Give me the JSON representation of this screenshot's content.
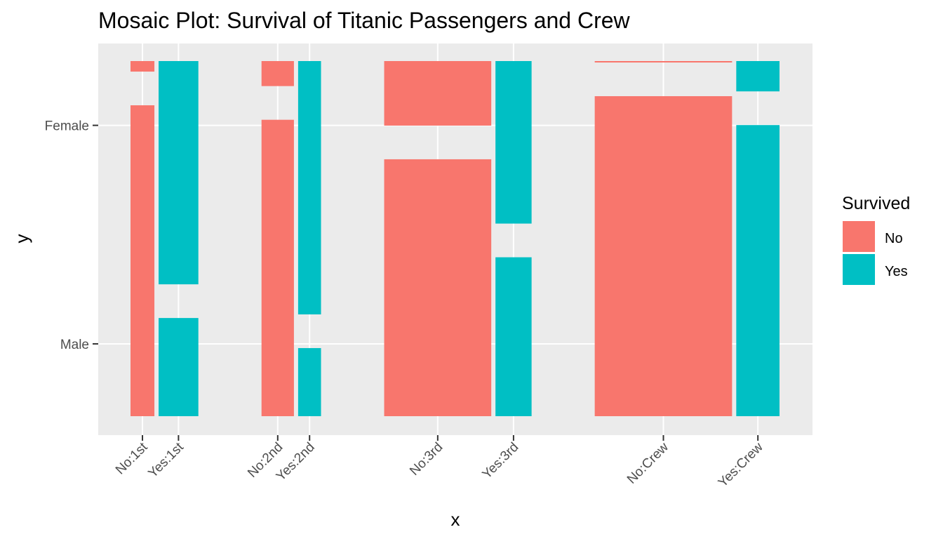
{
  "chart_data": {
    "type": "mosaic",
    "title": "Mosaic Plot: Survival of Titanic Passengers and Crew",
    "xlabel": "x",
    "ylabel": "y",
    "x_tick_labels": [
      "No:1st",
      "Yes:1st",
      "No:2nd",
      "Yes:2nd",
      "No:3rd",
      "Yes:3rd",
      "No:Crew",
      "Yes:Crew"
    ],
    "y_tick_labels": [
      "Male",
      "Female"
    ],
    "legend": {
      "title": "Survived",
      "placement": "right",
      "entries": [
        {
          "label": "No",
          "color": "#F8766D"
        },
        {
          "label": "Yes",
          "color": "#00BFC4"
        }
      ]
    },
    "grid": true,
    "categories": [
      "1st",
      "2nd",
      "3rd",
      "Crew"
    ],
    "series": [
      {
        "name": "No",
        "male": [
          118,
          154,
          422,
          670
        ],
        "female": [
          4,
          13,
          106,
          3
        ]
      },
      {
        "name": "Yes",
        "male": [
          62,
          25,
          88,
          192
        ],
        "female": [
          141,
          93,
          90,
          20
        ]
      }
    ],
    "colors": {
      "No": "#F8766D",
      "Yes": "#00BFC4"
    }
  }
}
